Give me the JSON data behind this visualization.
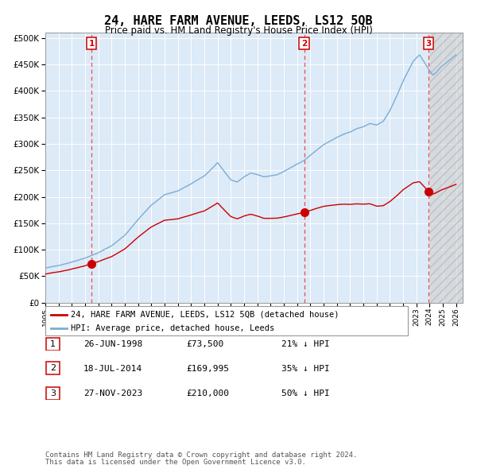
{
  "title": "24, HARE FARM AVENUE, LEEDS, LS12 5QB",
  "subtitle": "Price paid vs. HM Land Registry's House Price Index (HPI)",
  "legend_line1": "24, HARE FARM AVENUE, LEEDS, LS12 5QB (detached house)",
  "legend_line2": "HPI: Average price, detached house, Leeds",
  "footnote1": "Contains HM Land Registry data © Crown copyright and database right 2024.",
  "footnote2": "This data is licensed under the Open Government Licence v3.0.",
  "sales": [
    {
      "label": "1",
      "date": "26-JUN-1998",
      "price": 73500,
      "pct": "21% ↓ HPI",
      "x_year": 1998.49
    },
    {
      "label": "2",
      "date": "18-JUL-2014",
      "price": 169995,
      "pct": "35% ↓ HPI",
      "x_year": 2014.54
    },
    {
      "label": "3",
      "date": "27-NOV-2023",
      "price": 210000,
      "pct": "50% ↓ HPI",
      "x_year": 2023.91
    }
  ],
  "ylim": [
    0,
    510000
  ],
  "xlim_start": 1995.0,
  "xlim_end": 2026.5,
  "hpi_color": "#7aadd4",
  "sale_line_color": "#cc0000",
  "sale_point_color": "#cc0000",
  "dashed_color": "#ee3333",
  "bg_color": "#ddeaf7",
  "grid_color": "#ffffff",
  "title_fontsize": 11,
  "subtitle_fontsize": 9,
  "axis_fontsize": 7.5,
  "footnote_fontsize": 7
}
